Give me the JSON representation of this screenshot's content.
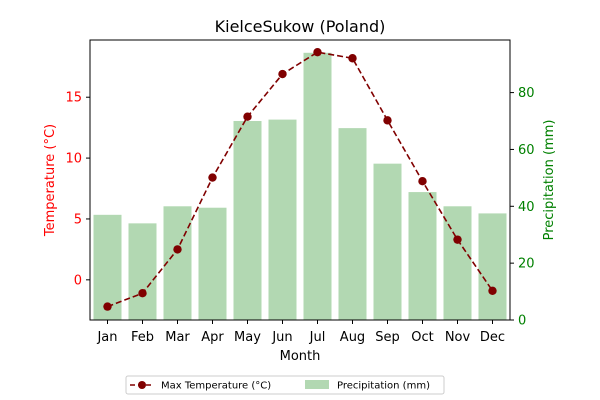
{
  "chart_data": {
    "type": "bar+line",
    "title": "KielceSukow (Poland)",
    "xlabel": "Month",
    "categories": [
      "Jan",
      "Feb",
      "Mar",
      "Apr",
      "May",
      "Jun",
      "Jul",
      "Aug",
      "Sep",
      "Oct",
      "Nov",
      "Dec"
    ],
    "left_axis": {
      "label": "Temperature (°C)",
      "color": "#ff0000",
      "ylim": [
        -3.3,
        19.7
      ],
      "ticks": [
        0,
        5,
        10,
        15
      ]
    },
    "right_axis": {
      "label": "Precipitation (mm)",
      "color": "#008000",
      "ylim": [
        0,
        98.5
      ],
      "ticks": [
        0,
        20,
        40,
        60,
        80
      ]
    },
    "series": [
      {
        "name": "Max Temperature (°C)",
        "type": "line",
        "axis": "left",
        "color": "#800000",
        "line_style": "dashed",
        "marker": "circle",
        "values": [
          -2.2,
          -1.1,
          2.5,
          8.4,
          13.4,
          16.9,
          18.7,
          18.2,
          13.1,
          8.1,
          3.3,
          -0.9
        ]
      },
      {
        "name": "Precipitation (mm)",
        "type": "bar",
        "axis": "right",
        "color": "#b2d8b2",
        "values": [
          37,
          34,
          40,
          39.5,
          70,
          70.5,
          94,
          67.5,
          55,
          45,
          40,
          37.5
        ]
      }
    ],
    "legend_position": "bottom-center",
    "grid": false
  }
}
